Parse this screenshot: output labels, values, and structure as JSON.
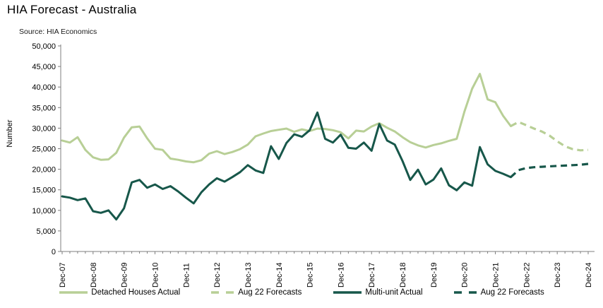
{
  "header": {
    "title": "HIA Forecast - Australia",
    "source": "Source: HIA Economics"
  },
  "chart_data": {
    "type": "line",
    "title": "HIA Forecast - Australia",
    "source": "Source: HIA Economics",
    "ylabel": "Number",
    "xlabel": "",
    "grid": false,
    "legend_position": "bottom",
    "x_unit": "quarterly from Dec-07 to Dec-24",
    "x_tick_labels": [
      "Dec-07",
      "Dec-08",
      "Dec-09",
      "Dec-10",
      "Dec-11",
      "Dec-12",
      "Dec-13",
      "Dec-14",
      "Dec-15",
      "Dec-16",
      "Dec-17",
      "Dec-18",
      "Dec-19",
      "Dec-20",
      "Dec-21",
      "Dec-22",
      "Dec-23",
      "Dec-24"
    ],
    "quarters_per_tick": 4,
    "ylim": [
      0,
      50000
    ],
    "y_tick_step": 5000,
    "y_tick_labels": [
      "0",
      "5,000",
      "10,000",
      "15,000",
      "20,000",
      "25,000",
      "30,000",
      "35,000",
      "40,000",
      "45,000",
      "50,000"
    ],
    "axis_color": "#7f7f7f",
    "series": [
      {
        "name": "Detached Houses Actual",
        "color": "#b8cf96",
        "style": "solid",
        "start_quarter": 0,
        "values": [
          27000,
          26500,
          27800,
          24700,
          22900,
          22300,
          22400,
          24000,
          27700,
          30200,
          30400,
          27500,
          25000,
          24700,
          22600,
          22300,
          21900,
          21700,
          22200,
          23800,
          24400,
          23700,
          24200,
          24900,
          26000,
          28000,
          28700,
          29300,
          29600,
          29900,
          29100,
          29700,
          29300,
          29900,
          29800,
          29500,
          29000,
          27500,
          29400,
          29200,
          30400,
          31200,
          30100,
          29200,
          27800,
          26600,
          25800,
          25300,
          25900,
          26300,
          26900,
          27400,
          34000,
          39600,
          43200,
          37000,
          36300,
          33000,
          30500
        ]
      },
      {
        "name": "Aug 22 Forecasts",
        "color": "#b8cf96",
        "style": "dashed",
        "start_quarter": 58,
        "values": [
          30500,
          31500,
          30700,
          29900,
          29200,
          28200,
          26800,
          25600,
          24900,
          24600,
          24700
        ]
      },
      {
        "name": "Multi-unit Actual",
        "color": "#17574a",
        "style": "solid",
        "start_quarter": 0,
        "values": [
          13400,
          13100,
          12500,
          12900,
          9800,
          9400,
          10000,
          7800,
          10500,
          16800,
          17400,
          15500,
          16300,
          15200,
          15900,
          14600,
          13100,
          11700,
          14400,
          16300,
          17800,
          17000,
          18100,
          19300,
          21000,
          19700,
          19100,
          25600,
          22500,
          26400,
          28500,
          27900,
          29500,
          33800,
          27400,
          26500,
          28400,
          25200,
          25000,
          26500,
          24500,
          31000,
          27000,
          26000,
          22000,
          17400,
          19900,
          16300,
          17500,
          20200,
          16100,
          14900,
          16800,
          16000,
          25400,
          21200,
          19600,
          18900,
          18100
        ]
      },
      {
        "name": "Aug 22 Forecasts",
        "color": "#17574a",
        "style": "dashed",
        "start_quarter": 58,
        "values": [
          18100,
          19800,
          20300,
          20500,
          20600,
          20700,
          20800,
          20900,
          21000,
          21100,
          21300
        ]
      }
    ]
  }
}
